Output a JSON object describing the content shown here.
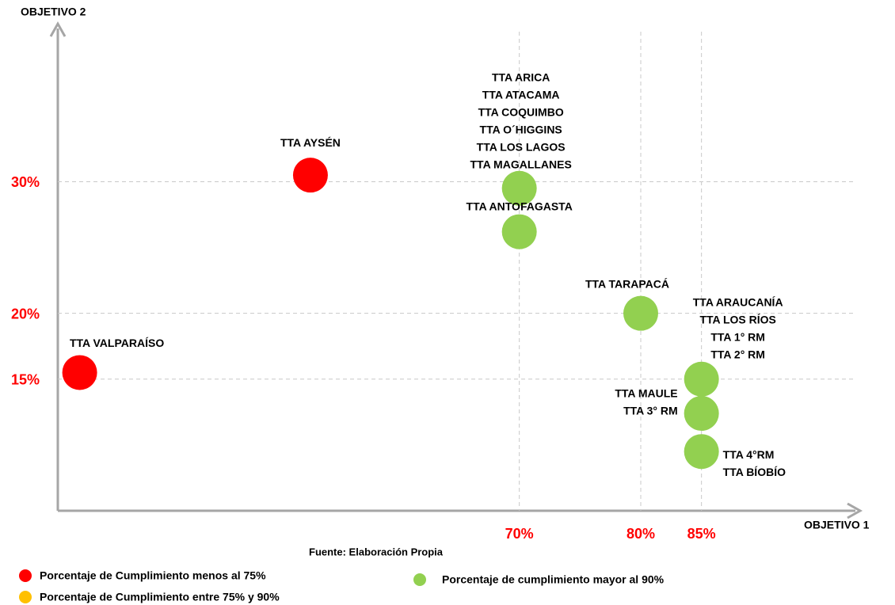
{
  "chart_data": {
    "type": "scatter",
    "x_label": "OBJETIVO 1",
    "y_label": "OBJETIVO 2",
    "source": "Fuente: Elaboración Propia",
    "xlim": [
      32,
      98
    ],
    "ylim": [
      5,
      42
    ],
    "xticks": [
      {
        "value": 70,
        "label": "70%"
      },
      {
        "value": 80,
        "label": "80%"
      },
      {
        "value": 85,
        "label": "85%"
      }
    ],
    "yticks": [
      {
        "value": 30,
        "label": "30%"
      },
      {
        "value": 20,
        "label": "20%"
      },
      {
        "value": 15,
        "label": "15%"
      }
    ],
    "grid": true,
    "series": [
      {
        "name": "Porcentaje de Cumplimiento menos al 75%",
        "color": "#ff0000",
        "x": [
          33.8,
          52.8
        ],
        "values": [
          15.5,
          30.5
        ],
        "labels": [
          [
            "TTA VALPARAÍSO"
          ],
          [
            "TTA AYSÉN"
          ]
        ]
      },
      {
        "name": "Porcentaje de Cumplimiento entre 75% y 90%",
        "color": "#ffc000",
        "x": [],
        "values": [],
        "labels": []
      },
      {
        "name": "Porcentaje de cumplimiento mayor al 90%",
        "color": "#92d050",
        "x": [
          70,
          70,
          80,
          85,
          85,
          85
        ],
        "values": [
          29.5,
          26.2,
          20,
          15,
          12.4,
          9.5
        ],
        "labels": [
          [
            "TTA ARICA",
            "TTA ATACAMA",
            "TTA COQUIMBO",
            "TTA O´HIGGINS",
            "TTA LOS LAGOS",
            "TTA MAGALLANES"
          ],
          [
            "TTA ANTOFAGASTA"
          ],
          [
            "TTA TARAPACÁ"
          ],
          [
            "TTA ARAUCANÍA",
            "TTA LOS RÍOS",
            "TTA 1° RM",
            "TTA 2° RM"
          ],
          [
            "TTA MAULE",
            "TTA 3° RM"
          ],
          [
            "TTA 4°RM",
            "TTA BÍOBÍO"
          ]
        ]
      }
    ]
  }
}
